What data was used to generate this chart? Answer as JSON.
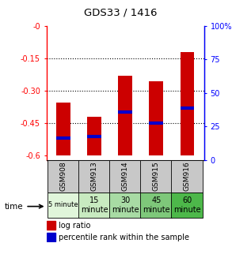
{
  "title": "GDS33 / 1416",
  "samples": [
    "GSM908",
    "GSM913",
    "GSM914",
    "GSM915",
    "GSM916"
  ],
  "time_labels": [
    "5 minute",
    "15\nminute",
    "30\nminute",
    "45\nminute",
    "60\nminute"
  ],
  "time_colors": [
    "#e0f5da",
    "#c8eac0",
    "#a8dba4",
    "#7ec87a",
    "#4db84a"
  ],
  "bar_bottoms": [
    -0.6,
    -0.6,
    -0.6,
    -0.6,
    -0.6
  ],
  "bar_tops": [
    -0.355,
    -0.42,
    -0.23,
    -0.255,
    -0.12
  ],
  "blue_positions": [
    -0.52,
    -0.51,
    -0.4,
    -0.45,
    -0.38
  ],
  "ylim_left": [
    -0.62,
    0.0
  ],
  "ylim_right": [
    0,
    100
  ],
  "left_ticks": [
    0.0,
    -0.15,
    -0.3,
    -0.45,
    -0.6
  ],
  "left_tick_labels": [
    "-0",
    "-0.15",
    "-0.30",
    "-0.45",
    "-0.6"
  ],
  "right_ticks": [
    0,
    25,
    50,
    75,
    100
  ],
  "right_tick_labels": [
    "0",
    "25",
    "50",
    "75",
    "100%"
  ],
  "bar_color": "#cc0000",
  "blue_color": "#0000cc",
  "bg_color": "#ffffff",
  "sample_bg": "#c8c8c8",
  "bar_width": 0.45
}
